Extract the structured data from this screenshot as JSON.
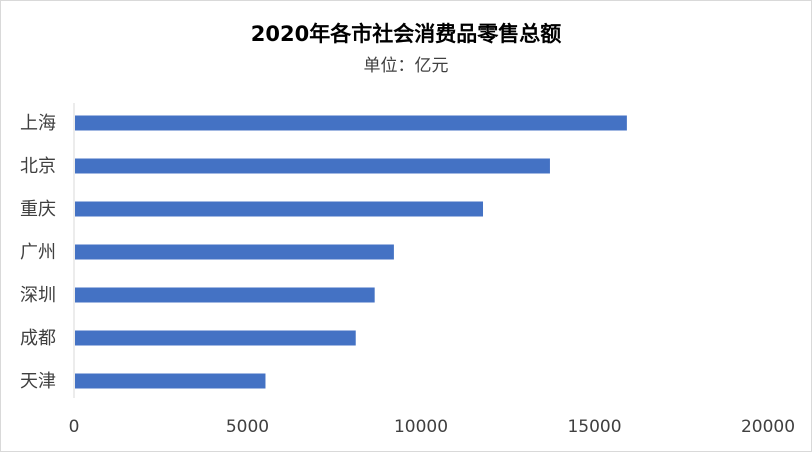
{
  "chart_data": {
    "type": "bar",
    "orientation": "horizontal",
    "title": "2020年各市社会消费品零售总额",
    "subtitle": "单位：亿元",
    "categories": [
      "上海",
      "北京",
      "重庆",
      "广州",
      "深圳",
      "成都",
      "天津"
    ],
    "values": [
      15933,
      13716,
      11787,
      9219,
      8665,
      8119,
      5518
    ],
    "xlim": [
      0,
      20000
    ],
    "xticks": [
      0,
      5000,
      10000,
      15000,
      20000
    ],
    "xlabel": "",
    "ylabel": "",
    "grid": false,
    "legend": "none",
    "bar_color": "#4472c4"
  }
}
